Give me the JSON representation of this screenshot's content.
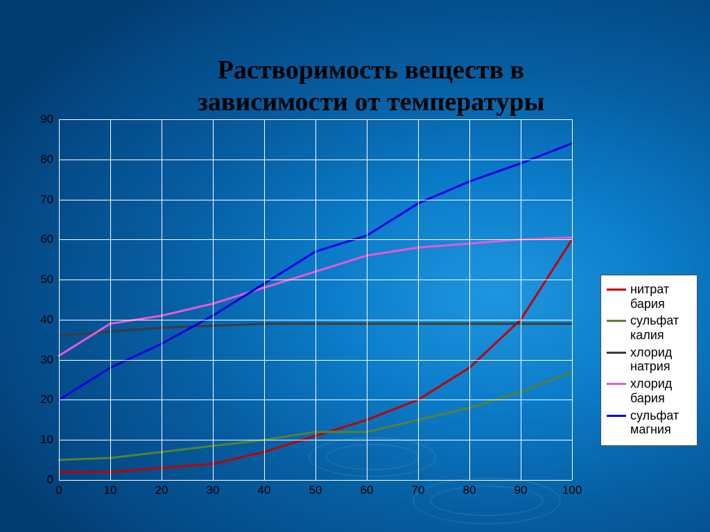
{
  "title_line1": "Растворимость веществ в",
  "title_line2": "зависимости от температуры",
  "title_fontsize": 38,
  "background_gradient": [
    "#1f96e0",
    "#065da0",
    "#033d72"
  ],
  "chart": {
    "type": "line",
    "grid_color": "#ffffff",
    "label_fontfamily": "Arial",
    "label_fontsize": 17,
    "xlim": [
      0,
      100
    ],
    "ylim": [
      0,
      90
    ],
    "xtick_step": 10,
    "ytick_step": 10,
    "x_values": [
      0,
      10,
      20,
      30,
      40,
      50,
      60,
      70,
      80,
      90,
      100
    ],
    "series": [
      {
        "key": "nitrate_ba",
        "values": [
          2,
          2,
          3,
          4,
          7,
          11,
          15,
          20,
          28,
          40,
          60
        ],
        "color": "#c00000",
        "line_width": 3,
        "label": "нитрат бария"
      },
      {
        "key": "sulfate_k",
        "values": [
          5,
          5.5,
          7,
          8.5,
          10,
          12,
          12,
          15,
          18,
          22,
          27
        ],
        "color": "#548235",
        "line_width": 3,
        "label": "сульфат калия"
      },
      {
        "key": "chloride_na",
        "values": [
          36,
          37,
          38,
          38.5,
          39,
          39,
          39,
          39,
          39,
          39,
          39
        ],
        "color": "#3b3b3b",
        "line_width": 3,
        "label": "хлорид натрия"
      },
      {
        "key": "chloride_ba",
        "values": [
          31,
          39,
          41,
          44,
          48,
          52,
          56,
          58,
          59,
          60,
          60.5
        ],
        "color": "#e858d6",
        "line_width": 3,
        "label": "хлорид бария"
      },
      {
        "key": "sulfate_mg",
        "values": [
          20,
          28,
          34,
          41,
          49,
          57,
          61,
          69,
          74.5,
          79,
          84
        ],
        "color": "#0000e0",
        "line_width": 3,
        "label": "сульфат магния"
      }
    ],
    "legend_box": {
      "background": "#ffffff",
      "border_color": "#4a4a4a",
      "fontsize": 18
    }
  }
}
